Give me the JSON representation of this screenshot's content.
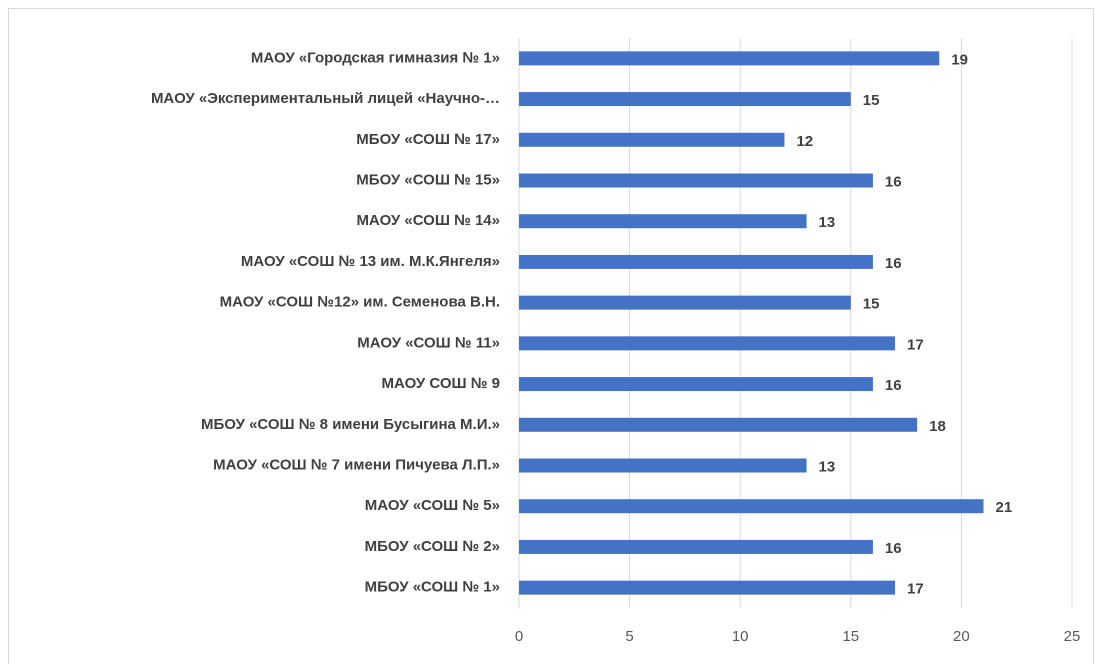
{
  "chart_data": {
    "type": "bar",
    "orientation": "horizontal",
    "categories": [
      "МАОУ «Городская гимназия № 1»",
      "МАОУ «Экспериментальный лицей «Научно-…",
      "МБОУ «СОШ № 17»",
      "МБОУ «СОШ № 15»",
      "МАОУ «СОШ № 14»",
      "МАОУ «СОШ № 13 им. М.К.Янгеля»",
      "МАОУ «СОШ №12» им. Семенова В.Н.",
      "МАОУ «СОШ № 11»",
      "МАОУ СОШ № 9",
      "МБОУ «СОШ № 8 имени Бусыгина М.И.»",
      "МАОУ «СОШ № 7 имени Пичуева Л.П.»",
      "МАОУ «СОШ № 5»",
      "МБОУ «СОШ № 2»",
      "МБОУ «СОШ № 1»"
    ],
    "values": [
      19,
      15,
      12,
      16,
      13,
      16,
      15,
      17,
      16,
      18,
      13,
      21,
      16,
      17
    ],
    "color": "#4472c4",
    "xlim": [
      0,
      25
    ],
    "xticks": [
      0,
      5,
      10,
      15,
      20,
      25
    ],
    "grid": true
  }
}
